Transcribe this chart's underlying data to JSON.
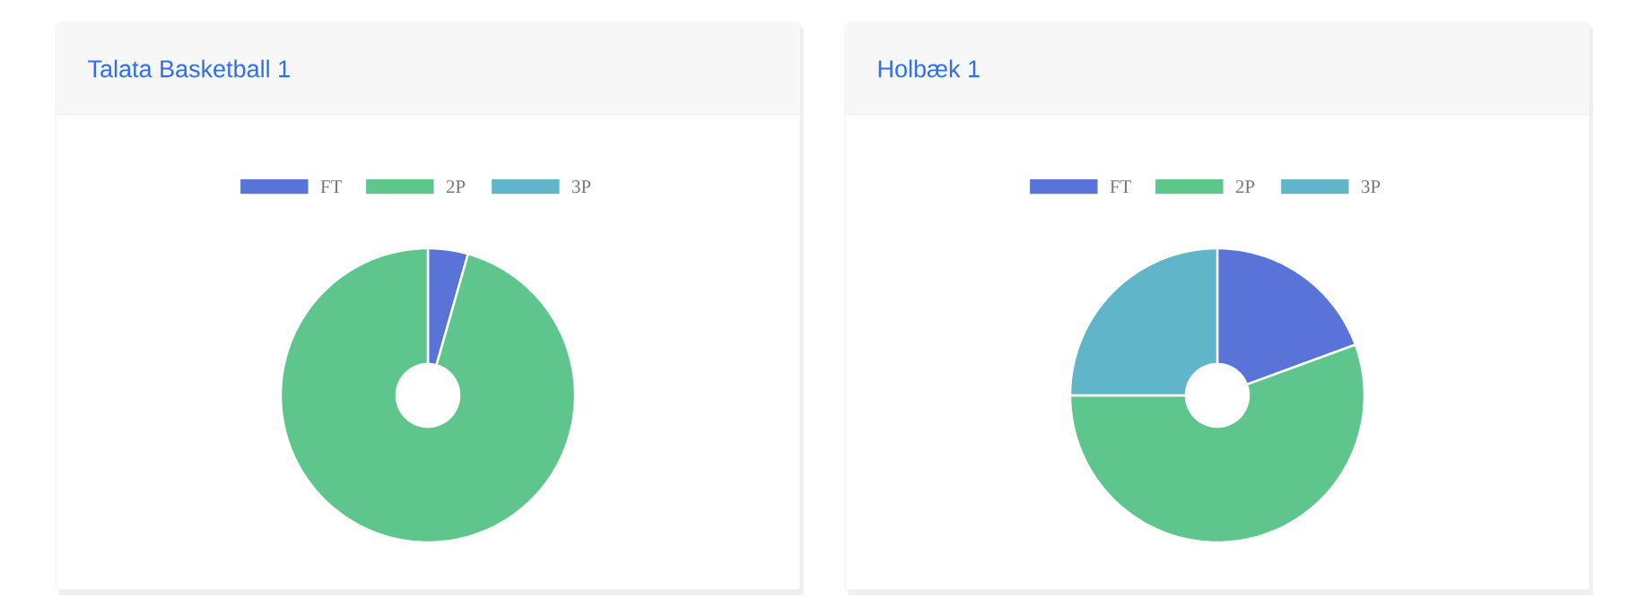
{
  "chart_data": [
    {
      "type": "donut",
      "title": "Talata Basketball 1",
      "categories": [
        "FT",
        "2P",
        "3P"
      ],
      "values": [
        4.4,
        95.6,
        0
      ],
      "colors": [
        "#5a73d8",
        "#5ec68c",
        "#60b5c9"
      ],
      "legend": "top"
    },
    {
      "type": "donut",
      "title": "Holbæk 1",
      "categories": [
        "FT",
        "2P",
        "3P"
      ],
      "values": [
        19.4,
        55.6,
        25
      ],
      "colors": [
        "#5a73d8",
        "#5ec68c",
        "#60b5c9"
      ],
      "legend": "top"
    }
  ]
}
